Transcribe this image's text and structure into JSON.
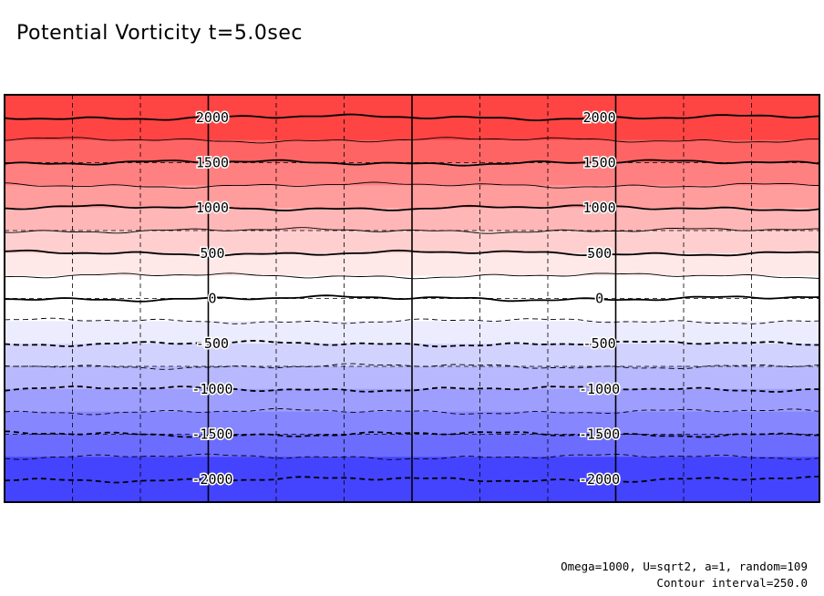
{
  "title": "Potential Vorticity t=5.0sec",
  "footer": {
    "params": "Omega=1000, U=sqrt2, a=1, random=109",
    "interval": "Contour interval=250.0"
  },
  "chart_data": {
    "type": "contour",
    "variable": "Potential Vorticity",
    "time_sec": 5.0,
    "value_range": [
      -2250,
      2250
    ],
    "contour_interval": 250.0,
    "y_levels": {
      "axis_range": [
        -2250,
        2250
      ],
      "bands": [
        {
          "from": 1750,
          "to": 2250,
          "color": "#ff4444"
        },
        {
          "from": 1500,
          "to": 1750,
          "color": "#ff6464"
        },
        {
          "from": 1250,
          "to": 1500,
          "color": "#ff8080"
        },
        {
          "from": 1000,
          "to": 1250,
          "color": "#ff9c9c"
        },
        {
          "from": 750,
          "to": 1000,
          "color": "#ffb6b6"
        },
        {
          "from": 500,
          "to": 750,
          "color": "#ffcfcf"
        },
        {
          "from": 250,
          "to": 500,
          "color": "#ffe8e8"
        },
        {
          "from": 0,
          "to": 250,
          "color": "#ffffff"
        },
        {
          "from": -250,
          "to": 0,
          "color": "#ffffff"
        },
        {
          "from": -500,
          "to": -250,
          "color": "#ececff"
        },
        {
          "from": -750,
          "to": -500,
          "color": "#d2d2ff"
        },
        {
          "from": -1000,
          "to": -750,
          "color": "#b8b8ff"
        },
        {
          "from": -1250,
          "to": -1000,
          "color": "#9e9eff"
        },
        {
          "from": -1500,
          "to": -1250,
          "color": "#8686ff"
        },
        {
          "from": -1750,
          "to": -1500,
          "color": "#6c6cff"
        },
        {
          "from": -2250,
          "to": -1750,
          "color": "#4444ff"
        }
      ]
    },
    "contours": [
      {
        "level": 2000,
        "style": "solid",
        "bold": true,
        "labels": [
          "2000",
          "2000"
        ]
      },
      {
        "level": 1750,
        "style": "solid",
        "bold": false,
        "labels": []
      },
      {
        "level": 1500,
        "style": "solid",
        "bold": true,
        "labels": [
          "1500",
          "1500"
        ]
      },
      {
        "level": 1250,
        "style": "solid",
        "bold": false,
        "labels": []
      },
      {
        "level": 1000,
        "style": "solid",
        "bold": true,
        "labels": [
          "1000",
          "1000"
        ]
      },
      {
        "level": 750,
        "style": "solid",
        "bold": false,
        "labels": []
      },
      {
        "level": 500,
        "style": "solid",
        "bold": true,
        "labels": [
          "500",
          "500"
        ]
      },
      {
        "level": 250,
        "style": "solid",
        "bold": false,
        "labels": []
      },
      {
        "level": 0,
        "style": "solid",
        "bold": true,
        "labels": [
          "0",
          "0"
        ]
      },
      {
        "level": -250,
        "style": "dashed",
        "bold": false,
        "labels": []
      },
      {
        "level": -500,
        "style": "dashed",
        "bold": true,
        "labels": [
          "-500",
          "-500"
        ]
      },
      {
        "level": -750,
        "style": "dashed",
        "bold": false,
        "labels": []
      },
      {
        "level": -1000,
        "style": "dashed",
        "bold": true,
        "labels": [
          "-1000",
          "-1000"
        ]
      },
      {
        "level": -1250,
        "style": "dashed",
        "bold": false,
        "labels": []
      },
      {
        "level": -1500,
        "style": "dashed",
        "bold": true,
        "labels": [
          "-1500",
          "-1500"
        ]
      },
      {
        "level": -1750,
        "style": "dashed",
        "bold": false,
        "labels": []
      },
      {
        "level": -2000,
        "style": "dashed",
        "bold": true,
        "labels": [
          "-2000",
          "-2000"
        ]
      }
    ],
    "gridlines": {
      "vertical_solid": 3,
      "vertical_dashed": 8,
      "horizontal_dashed": 5
    },
    "grid": true
  }
}
